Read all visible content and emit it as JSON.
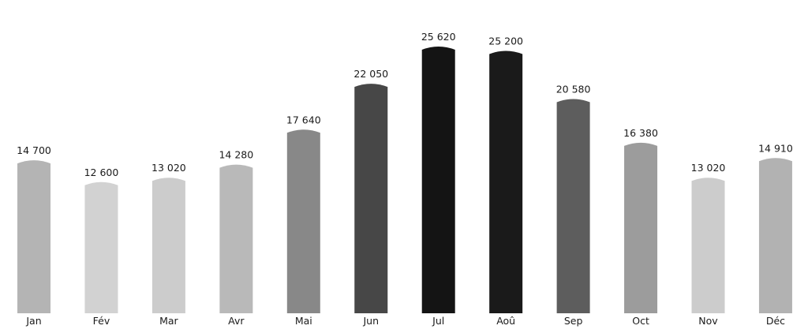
{
  "chart_data": {
    "type": "bar",
    "categories": [
      "Jan",
      "Fév",
      "Mar",
      "Avr",
      "Mai",
      "Jun",
      "Jul",
      "Aoû",
      "Sep",
      "Oct",
      "Nov",
      "Déc"
    ],
    "values": [
      14700,
      12600,
      13020,
      14280,
      17640,
      22050,
      25620,
      25200,
      20580,
      16380,
      13020,
      14910
    ],
    "value_labels": [
      "14 700",
      "12 600",
      "13 020",
      "14 280",
      "17 640",
      "22 050",
      "25 620",
      "25 200",
      "20 580",
      "16 380",
      "13 020",
      "14 910"
    ],
    "colors": [
      "#b4b4b4",
      "#d2d2d2",
      "#cccccc",
      "#b9b9b9",
      "#888888",
      "#474747",
      "#141414",
      "#1a1a1a",
      "#5d5d5d",
      "#9c9c9c",
      "#cccccc",
      "#b2b2b2"
    ],
    "ylim": [
      0,
      25620
    ],
    "grid": false,
    "legend": "none",
    "title": "",
    "xlabel": "",
    "ylabel": ""
  }
}
